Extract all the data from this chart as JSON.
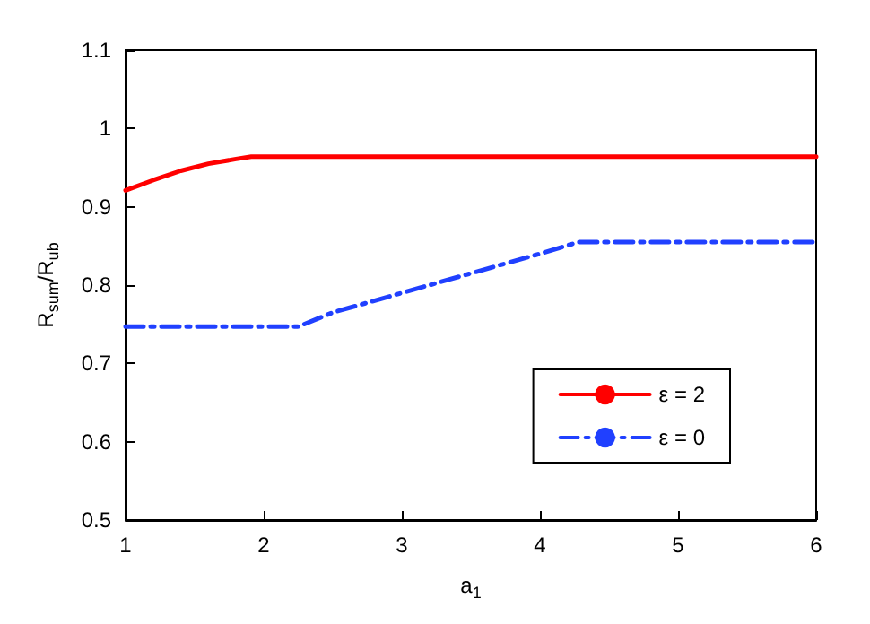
{
  "chart_data": {
    "type": "line",
    "xlabel": "a$_{1}$",
    "ylabel": "R$_{sum}$/R$_{ub}$",
    "xlim": [
      1,
      6
    ],
    "xticks": [
      1,
      2,
      3,
      4,
      5,
      6
    ],
    "ylim": [
      0.5,
      1.1
    ],
    "yticks": [
      0.5,
      0.6,
      0.7,
      0.8,
      0.9,
      1,
      1.1
    ],
    "grid": false,
    "legend": "bottom right",
    "marker": "none",
    "series": [
      {
        "name": "ε = 2",
        "color": "#ff0000",
        "line_style": "solid",
        "x": [
          1,
          1.2,
          1.4,
          1.6,
          1.8,
          1.91,
          6
        ],
        "values": [
          0.921,
          0.934,
          0.946,
          0.955,
          0.961,
          0.964,
          0.964
        ]
      },
      {
        "name": "ε = 0",
        "color": "#2040ff",
        "line_style": "dashed",
        "x": [
          1,
          2.25,
          2.5,
          3,
          3.5,
          4,
          4.28,
          6
        ],
        "values": [
          0.747,
          0.747,
          0.765,
          0.79,
          0.815,
          0.84,
          0.855,
          0.855
        ]
      }
    ]
  }
}
